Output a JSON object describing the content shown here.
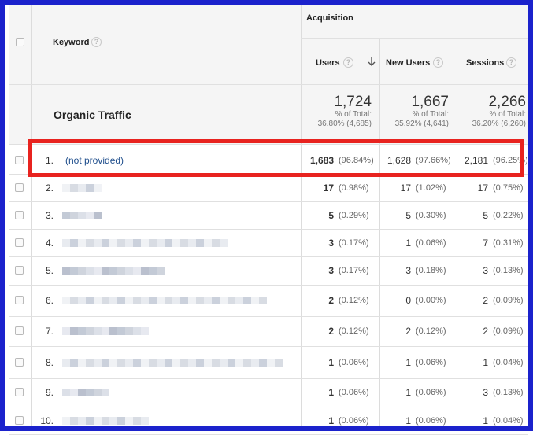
{
  "header": {
    "group_label": "Acquisition",
    "keyword_label": "Keyword",
    "help_glyph": "?",
    "columns": [
      {
        "label": "Users"
      },
      {
        "label": "New Users"
      },
      {
        "label": "Sessions"
      }
    ]
  },
  "summary": {
    "label": "Organic Traffic",
    "metrics": [
      {
        "value": "1,724",
        "pct_label": "% of Total:",
        "pct_value": "36.80% (4,685)"
      },
      {
        "value": "1,667",
        "pct_label": "% of Total:",
        "pct_value": "35.92% (4,641)"
      },
      {
        "value": "2,266",
        "pct_label": "% of Total:",
        "pct_value": "36.20% (6,260)"
      }
    ]
  },
  "highlight_color": "#e8231f",
  "rows": [
    {
      "num": "1.",
      "keyword": "(not provided)",
      "users": "1,683",
      "users_pct": "(96.84%)",
      "new_users": "1,628",
      "new_users_pct": "(97.66%)",
      "sessions": "2,181",
      "sessions_pct": "(96.25%)"
    },
    {
      "num": "2.",
      "keyword": "",
      "users": "17",
      "users_pct": "(0.98%)",
      "new_users": "17",
      "new_users_pct": "(1.02%)",
      "sessions": "17",
      "sessions_pct": "(0.75%)"
    },
    {
      "num": "3.",
      "keyword": "",
      "users": "5",
      "users_pct": "(0.29%)",
      "new_users": "5",
      "new_users_pct": "(0.30%)",
      "sessions": "5",
      "sessions_pct": "(0.22%)"
    },
    {
      "num": "4.",
      "keyword": "",
      "users": "3",
      "users_pct": "(0.17%)",
      "new_users": "1",
      "new_users_pct": "(0.06%)",
      "sessions": "7",
      "sessions_pct": "(0.31%)"
    },
    {
      "num": "5.",
      "keyword": "",
      "users": "3",
      "users_pct": "(0.17%)",
      "new_users": "3",
      "new_users_pct": "(0.18%)",
      "sessions": "3",
      "sessions_pct": "(0.13%)"
    },
    {
      "num": "6.",
      "keyword": "",
      "users": "2",
      "users_pct": "(0.12%)",
      "new_users": "0",
      "new_users_pct": "(0.00%)",
      "sessions": "2",
      "sessions_pct": "(0.09%)"
    },
    {
      "num": "7.",
      "keyword": "",
      "users": "2",
      "users_pct": "(0.12%)",
      "new_users": "2",
      "new_users_pct": "(0.12%)",
      "sessions": "2",
      "sessions_pct": "(0.09%)"
    },
    {
      "num": "8.",
      "keyword": "",
      "users": "1",
      "users_pct": "(0.06%)",
      "new_users": "1",
      "new_users_pct": "(0.06%)",
      "sessions": "1",
      "sessions_pct": "(0.04%)"
    },
    {
      "num": "9.",
      "keyword": "",
      "users": "1",
      "users_pct": "(0.06%)",
      "new_users": "1",
      "new_users_pct": "(0.06%)",
      "sessions": "3",
      "sessions_pct": "(0.13%)"
    },
    {
      "num": "10.",
      "keyword": "",
      "users": "1",
      "users_pct": "(0.06%)",
      "new_users": "1",
      "new_users_pct": "(0.06%)",
      "sessions": "1",
      "sessions_pct": "(0.04%)"
    }
  ]
}
